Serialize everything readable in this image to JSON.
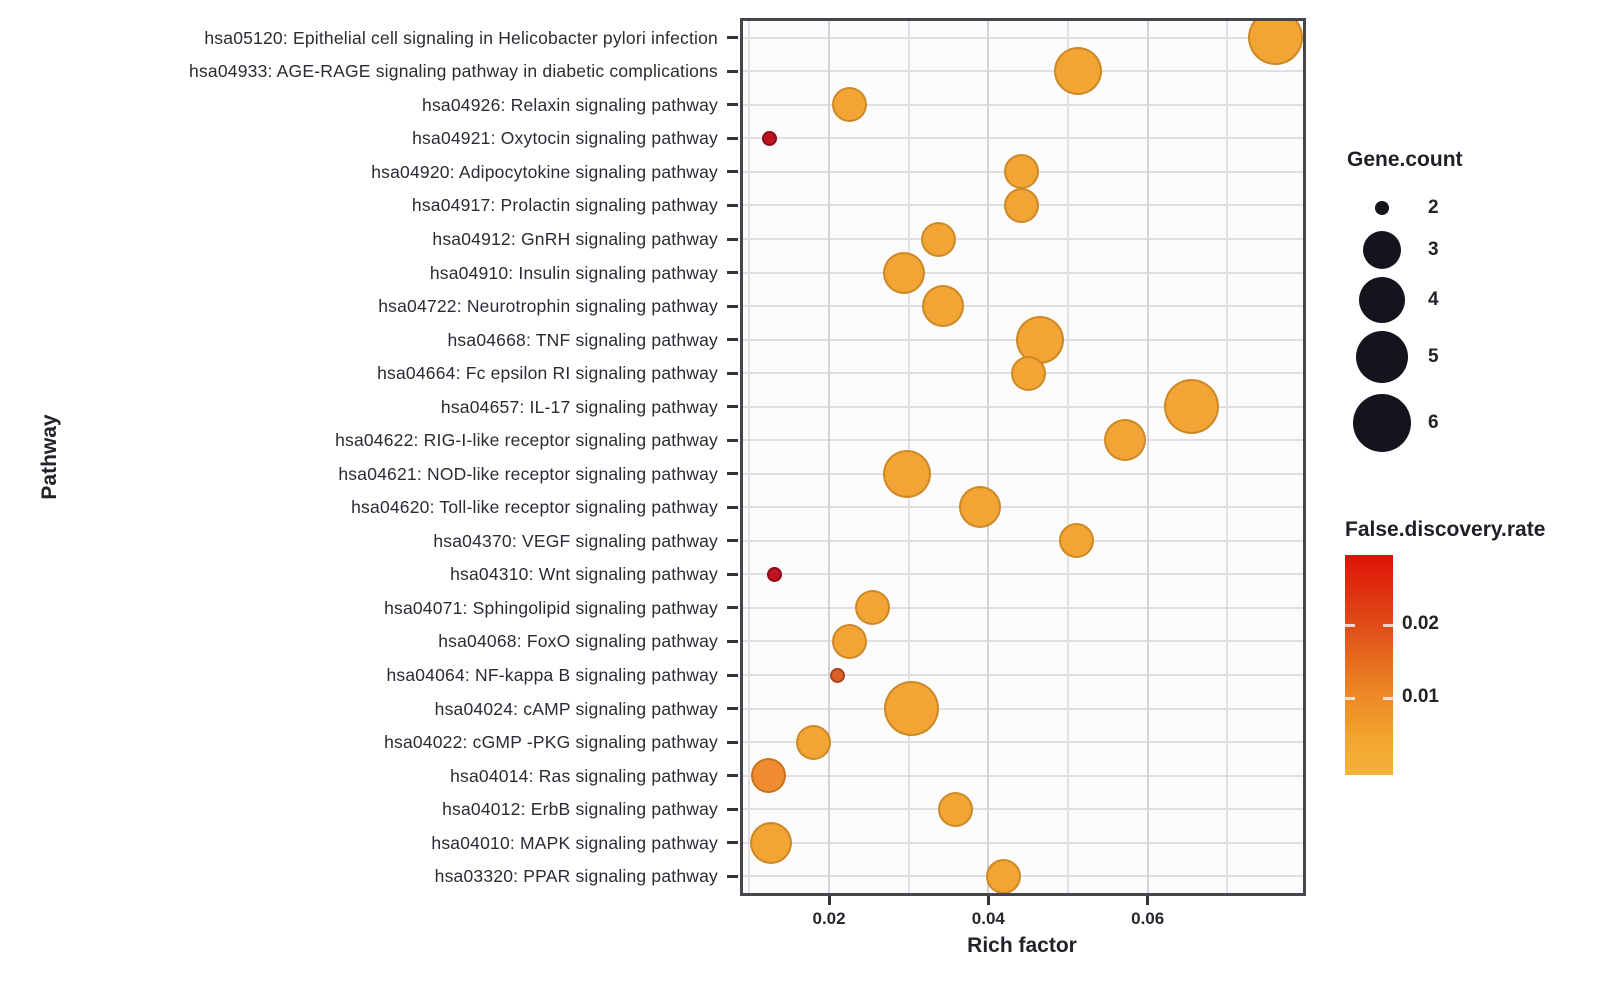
{
  "figure": {
    "description": "KEGG pathway enrichment bubble plot",
    "background": "#ffffff"
  },
  "colors": {
    "bubble_default": "#F2A434",
    "bubble_dark_orange": "#EE8C2F",
    "bubble_orange_red": "#D95F2B",
    "bubble_red": "#BE1322",
    "legend_dot": "#14141c",
    "panel_border": "#45454c",
    "gridline": "#d4d4da",
    "axis_text": "#26262e"
  },
  "chart_data": {
    "type": "scatter",
    "subtype": "bubble",
    "title": "",
    "xlabel": "Rich factor",
    "ylabel": "Pathway",
    "xlim": [
      0.0092,
      0.0795
    ],
    "x_ticks": [
      0.02,
      0.04,
      0.06
    ],
    "x_tick_labels": [
      "0.02",
      "0.04",
      "0.06"
    ],
    "grid": "on",
    "legend_position": "right",
    "points": [
      {
        "pathway": "hsa05120: Epithelial cell signaling in Helicobacter pylori infection",
        "rich_factor": 0.076,
        "gene_count": 6,
        "fdr": 0.004,
        "color": "#F2A434"
      },
      {
        "pathway": "hsa04933: AGE-RAGE signaling pathway in diabetic complications",
        "rich_factor": 0.0512,
        "gene_count": 5,
        "fdr": 0.004,
        "color": "#F2A434"
      },
      {
        "pathway": "hsa04926: Relaxin signaling pathway",
        "rich_factor": 0.0226,
        "gene_count": 3,
        "fdr": 0.005,
        "color": "#F2A434"
      },
      {
        "pathway": "hsa04921: Oxytocin signaling pathway",
        "rich_factor": 0.0125,
        "gene_count": 2,
        "fdr": 0.027,
        "color": "#BE1322"
      },
      {
        "pathway": "hsa04920: Adipocytokine signaling pathway",
        "rich_factor": 0.0442,
        "gene_count": 3,
        "fdr": 0.004,
        "color": "#F2A434"
      },
      {
        "pathway": "hsa04917: Prolactin signaling pathway",
        "rich_factor": 0.0442,
        "gene_count": 3,
        "fdr": 0.004,
        "color": "#F2A434"
      },
      {
        "pathway": "hsa04912: GnRH signaling pathway",
        "rich_factor": 0.0338,
        "gene_count": 3,
        "fdr": 0.005,
        "color": "#F2A434"
      },
      {
        "pathway": "hsa04910: Insulin signaling pathway",
        "rich_factor": 0.0294,
        "gene_count": 4,
        "fdr": 0.005,
        "color": "#F2A434"
      },
      {
        "pathway": "hsa04722: Neurotrophin signaling pathway",
        "rich_factor": 0.0343,
        "gene_count": 4,
        "fdr": 0.004,
        "color": "#F2A434"
      },
      {
        "pathway": "hsa04668: TNF signaling pathway",
        "rich_factor": 0.0465,
        "gene_count": 5,
        "fdr": 0.004,
        "color": "#F2A434"
      },
      {
        "pathway": "hsa04664: Fc epsilon RI signaling pathway",
        "rich_factor": 0.045,
        "gene_count": 3,
        "fdr": 0.005,
        "color": "#F2A434"
      },
      {
        "pathway": "hsa04657: IL-17 signaling pathway",
        "rich_factor": 0.0655,
        "gene_count": 6,
        "fdr": 0.003,
        "color": "#F2A434"
      },
      {
        "pathway": "hsa04622: RIG-I-like receptor signaling pathway",
        "rich_factor": 0.0571,
        "gene_count": 4,
        "fdr": 0.004,
        "color": "#F2A434"
      },
      {
        "pathway": "hsa04621: NOD-like receptor signaling pathway",
        "rich_factor": 0.0298,
        "gene_count": 5,
        "fdr": 0.004,
        "color": "#F2A434"
      },
      {
        "pathway": "hsa04620: Toll-like receptor signaling pathway",
        "rich_factor": 0.039,
        "gene_count": 4,
        "fdr": 0.004,
        "color": "#F2A434"
      },
      {
        "pathway": "hsa04370: VEGF signaling pathway",
        "rich_factor": 0.0511,
        "gene_count": 3,
        "fdr": 0.004,
        "color": "#F2A434"
      },
      {
        "pathway": "hsa04310: Wnt signaling pathway",
        "rich_factor": 0.0132,
        "gene_count": 2,
        "fdr": 0.027,
        "color": "#BE1322"
      },
      {
        "pathway": "hsa04071: Sphingolipid signaling pathway",
        "rich_factor": 0.0255,
        "gene_count": 3,
        "fdr": 0.004,
        "color": "#F2A434"
      },
      {
        "pathway": "hsa04068: FoxO signaling pathway",
        "rich_factor": 0.0226,
        "gene_count": 3,
        "fdr": 0.004,
        "color": "#F2A434"
      },
      {
        "pathway": "hsa04064: NF-kappa B signaling pathway",
        "rich_factor": 0.0211,
        "gene_count": 2,
        "fdr": 0.016,
        "color": "#D95F2B"
      },
      {
        "pathway": "hsa04024: cAMP signaling pathway",
        "rich_factor": 0.0304,
        "gene_count": 6,
        "fdr": 0.004,
        "color": "#F2A434"
      },
      {
        "pathway": "hsa04022: cGMP -PKG signaling pathway",
        "rich_factor": 0.0181,
        "gene_count": 3,
        "fdr": 0.005,
        "color": "#F2A434"
      },
      {
        "pathway": "hsa04014: Ras signaling pathway",
        "rich_factor": 0.0124,
        "gene_count": 3,
        "fdr": 0.009,
        "color": "#EE8C2F"
      },
      {
        "pathway": "hsa04012: ErbB signaling pathway",
        "rich_factor": 0.0359,
        "gene_count": 3,
        "fdr": 0.004,
        "color": "#F2A434"
      },
      {
        "pathway": "hsa04010: MAPK signaling pathway",
        "rich_factor": 0.0127,
        "gene_count": 4,
        "fdr": 0.004,
        "color": "#F2A434"
      },
      {
        "pathway": "hsa03320: PPAR signaling pathway",
        "rich_factor": 0.0419,
        "gene_count": 3,
        "fdr": 0.004,
        "color": "#F2A434"
      }
    ],
    "legend_gene_count": {
      "title": "Gene.count",
      "entries": [
        {
          "count": "2",
          "radius_px": 7
        },
        {
          "count": "3",
          "radius_px": 19
        },
        {
          "count": "4",
          "radius_px": 23
        },
        {
          "count": "5",
          "radius_px": 26
        },
        {
          "count": "6",
          "radius_px": 29
        }
      ]
    },
    "legend_fdr": {
      "title": "False.discovery.rate",
      "tick_labels": [
        "0.02",
        "0.01"
      ],
      "gradient_top_color": "#E01205",
      "gradient_bottom_color": "#F4B23C",
      "range": [
        0.0,
        0.03
      ]
    }
  }
}
